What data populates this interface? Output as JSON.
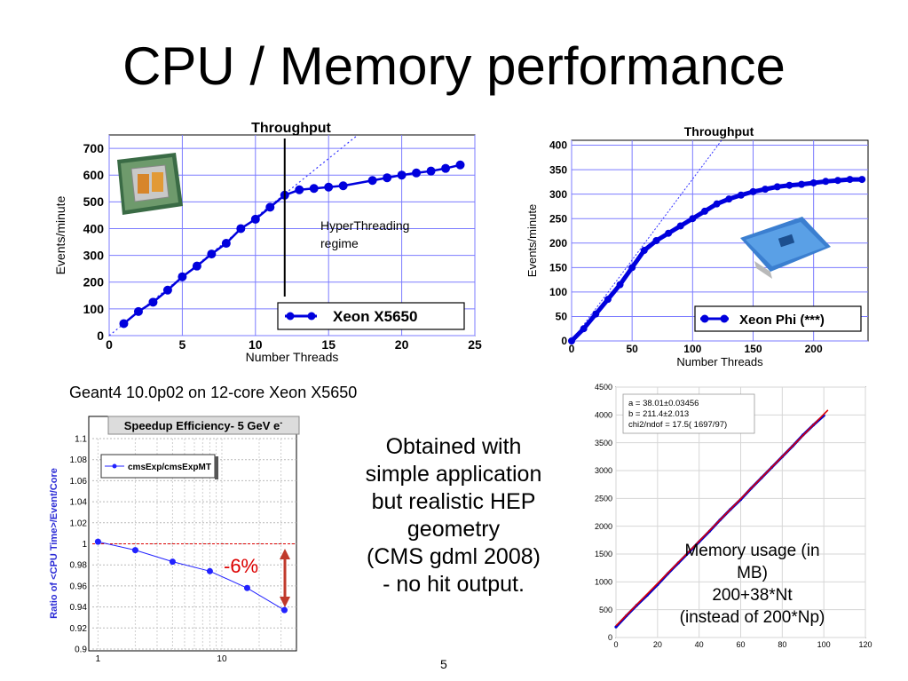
{
  "slide": {
    "title": "CPU / Memory performance",
    "number": "5",
    "caption_left": "Geant4 10.0p02 on 12-core Xeon X5650",
    "center_text": [
      "Obtained with",
      "simple application",
      "but realistic HEP",
      "geometry",
      "(CMS gdml 2008)",
      "- no hit output."
    ],
    "memory_note": [
      "Memory usage (in",
      "MB)",
      "200+38*Nt",
      "(instead of 200*Np)"
    ]
  },
  "chart_data": [
    {
      "id": "xeon-x5650",
      "type": "line",
      "title": "Throughput",
      "xlabel": "Number Threads",
      "ylabel": "Events/minute",
      "xlim": [
        0,
        25
      ],
      "ylim": [
        0,
        750
      ],
      "xticks": [
        0,
        5,
        10,
        15,
        20,
        25
      ],
      "yticks": [
        0,
        100,
        200,
        300,
        400,
        500,
        600,
        700
      ],
      "grid": true,
      "legend": "bottom-right",
      "annotation": [
        "HyperThreading",
        "regime"
      ],
      "marker_line_x": 12,
      "series": [
        {
          "name": "Xeon X5650",
          "color": "#0000dd",
          "x": [
            1,
            2,
            3,
            4,
            5,
            6,
            7,
            8,
            9,
            10,
            11,
            12,
            13,
            14,
            15,
            16,
            18,
            19,
            20,
            21,
            22,
            23,
            24
          ],
          "y": [
            45,
            90,
            125,
            170,
            220,
            260,
            305,
            345,
            400,
            435,
            480,
            525,
            545,
            550,
            555,
            560,
            580,
            590,
            600,
            608,
            615,
            625,
            638
          ]
        }
      ],
      "ideal_scaling": {
        "x": [
          0,
          17
        ],
        "y": [
          0,
          750
        ]
      }
    },
    {
      "id": "xeon-phi",
      "type": "line",
      "title": "Throughput",
      "xlabel": "Number Threads",
      "ylabel": "Events/minute",
      "xlim": [
        0,
        245
      ],
      "ylim": [
        0,
        410
      ],
      "xticks": [
        0,
        50,
        100,
        150,
        200
      ],
      "yticks": [
        0,
        50,
        100,
        150,
        200,
        250,
        300,
        350,
        400
      ],
      "grid": true,
      "legend": "bottom-right",
      "series": [
        {
          "name": "Xeon Phi (***)",
          "color": "#0000dd",
          "x": [
            0,
            10,
            20,
            30,
            40,
            50,
            60,
            70,
            80,
            90,
            100,
            110,
            120,
            130,
            140,
            150,
            160,
            170,
            180,
            190,
            200,
            210,
            220,
            230,
            240
          ],
          "y": [
            0,
            25,
            55,
            85,
            115,
            150,
            185,
            205,
            220,
            235,
            250,
            265,
            280,
            290,
            298,
            305,
            310,
            315,
            318,
            320,
            323,
            326,
            328,
            330,
            330
          ]
        }
      ],
      "ideal_scaling": {
        "x": [
          0,
          130
        ],
        "y": [
          0,
          430
        ]
      }
    },
    {
      "id": "speedup-efficiency",
      "type": "line",
      "title": "Speedup Efficiency- 5 GeV e",
      "title_superscript": "-",
      "ylabel": "Ratio of <CPU Time>/Event/Core",
      "xscale": "log",
      "xlim": [
        0.9,
        40
      ],
      "ylim": [
        0.9,
        1.1
      ],
      "xticks": [
        1,
        10
      ],
      "yticks": [
        0.9,
        0.92,
        0.94,
        0.96,
        0.98,
        1,
        1.02,
        1.04,
        1.06,
        1.08,
        1.1
      ],
      "grid": true,
      "legend": "top-left",
      "reference_line_y": 1,
      "annotation": "-6%",
      "series": [
        {
          "name": "cmsExp/cmsExpMT",
          "color": "#2222ff",
          "x": [
            1,
            2,
            4,
            8,
            16,
            32
          ],
          "y": [
            1.002,
            0.994,
            0.983,
            0.974,
            0.958,
            0.937
          ]
        }
      ]
    },
    {
      "id": "memory-usage",
      "type": "scatter",
      "xlim": [
        0,
        120
      ],
      "ylim": [
        0,
        4500
      ],
      "xticks": [
        0,
        20,
        40,
        60,
        80,
        100,
        120
      ],
      "yticks": [
        0,
        500,
        1000,
        1500,
        2000,
        2500,
        3000,
        3500,
        4000,
        4500
      ],
      "grid": true,
      "fit_box": [
        "a = 38.01±0.03456",
        "b = 211.4±2.013",
        "chi2/ndof =  17.5( 1697/97)"
      ],
      "fit": {
        "a": 38.01,
        "b": 211.4,
        "color": "#dd0000"
      },
      "series": [
        {
          "name": "",
          "color": "#0000cc",
          "x": [
            0,
            5,
            10,
            15,
            20,
            25,
            30,
            35,
            40,
            45,
            50,
            55,
            60,
            65,
            70,
            75,
            80,
            85,
            90,
            95,
            100
          ],
          "y": [
            190,
            390,
            580,
            760,
            950,
            1150,
            1340,
            1530,
            1720,
            1910,
            2110,
            2300,
            2480,
            2680,
            2870,
            3060,
            3250,
            3440,
            3640,
            3820,
            3990
          ]
        }
      ]
    }
  ]
}
